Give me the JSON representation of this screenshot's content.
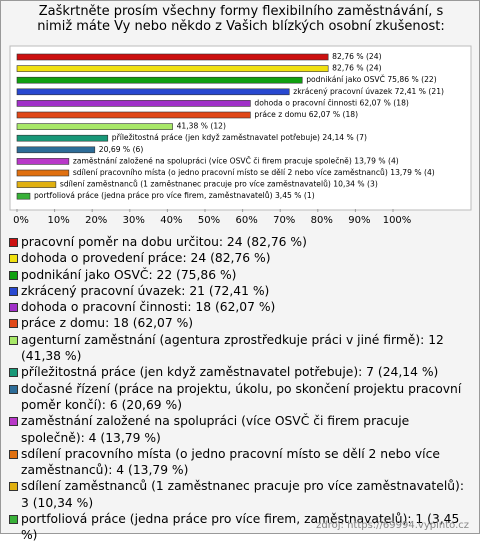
{
  "chart_data": {
    "type": "hbar",
    "title": "Zaškrtněte prosím všechny formy flexibilního zaměstnávání, s nimiž máte Vy nebo někdo z Vašich blízkých osobní zkušenost:",
    "categories": [
      "pracovní poměr na dobu určitou: 24 (82,76 %)",
      "dohoda o provedení práce: 24 (82,76 %)",
      "podnikání jako OSVČ: 22 (75,86 %)",
      "zkrácený pracovní úvazek: 21 (72,41 %)",
      "dohoda o pracovní činnosti: 18 (62,07 %)",
      "práce z domu: 18 (62,07 %)",
      "agenturní zaměstnání (agentura zprostředkuje práci v jiné firmě): 12 (41,38 %)",
      "příležitostná práce (jen když zaměstnavatel potřebuje): 7 (24,14 %)",
      "dočasné řízení (práce na projektu, úkolu, po skončení projektu pracovní poměr končí): 6 (20,69 %)",
      "zaměstnání založené na spolupráci (více OSVČ či firem pracuje společně): 4 (13,79 %)",
      "sdílení pracovního místa (o jedno pracovní místo se dělí 2 nebo více zaměstnanců): 4 (13,79 %)",
      "sdílení zaměstnanců (1 zaměstnanec pracuje pro více zaměstnavatelů): 3 (10,34 %)",
      "portfoliová práce (jedna práce pro více firem, zaměstnavatelů): 1 (3,45 %)"
    ],
    "values": [
      82.76,
      82.76,
      75.86,
      72.41,
      62.07,
      62.07,
      41.38,
      24.14,
      20.69,
      13.79,
      13.79,
      10.34,
      3.45
    ],
    "value_labels": [
      "82,76 % (24)",
      "82,76 % (24)",
      "podnikání jako OSVČ 75,86 % (22)",
      "zkrácený pracovní úvazek 72,41 % (21)",
      "dohoda o pracovní činnosti 62,07 % (18)",
      "práce z domu 62,07 % (18)",
      "41,38 % (12)",
      "příležitostná práce (jen když zaměstnavatel potřebuje) 24,14 % (7)",
      "20,69 % (6)",
      "zaměstnání založené na spolupráci (více OSVČ či firem pracuje společně) 13,79 % (4)",
      "sdílení pracovního místa (o jedno pracovní místo se dělí 2 nebo více zaměstnanců) 13,79 % (4)",
      "sdílení zaměstnanců (1 zaměstnanec pracuje pro více zaměstnavatelů) 10,34 % (3)",
      "portfoliová práce (jedna práce pro více firem, zaměstnavatelů) 3,45 % (1)"
    ],
    "colors": [
      "#cc1010",
      "#f0e010",
      "#10a010",
      "#2848d0",
      "#a030c8",
      "#e04818",
      "#a8e868",
      "#189878",
      "#2c6c98",
      "#b838c8",
      "#e07010",
      "#e0b010",
      "#38b038"
    ],
    "xlim": [
      0,
      100
    ],
    "xticks": [
      {
        "value": 0,
        "label": "0%"
      },
      {
        "value": 10,
        "label": "10%"
      },
      {
        "value": 20,
        "label": "20%"
      },
      {
        "value": 30,
        "label": "30%"
      },
      {
        "value": 40,
        "label": "40%"
      },
      {
        "value": 50,
        "label": "50%"
      },
      {
        "value": 60,
        "label": "60%"
      },
      {
        "value": 70,
        "label": "70%"
      },
      {
        "value": 80,
        "label": "80%"
      },
      {
        "value": 90,
        "label": "90%"
      },
      {
        "value": 100,
        "label": "100%"
      }
    ],
    "grid": false,
    "source": "zdroj: https://69994.vyplnto.cz"
  }
}
